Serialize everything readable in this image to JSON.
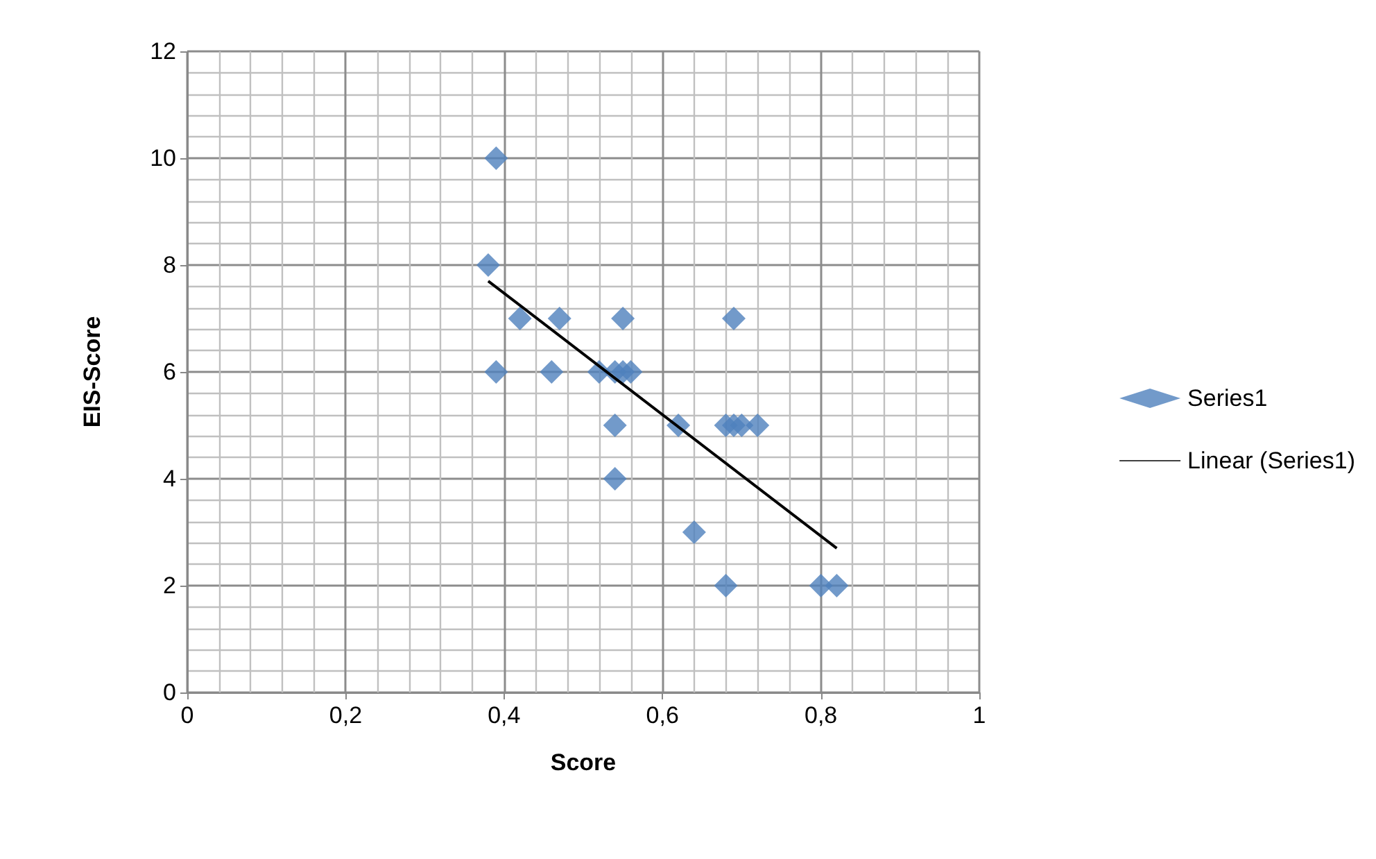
{
  "chart_data": {
    "type": "scatter",
    "xlabel": "Score",
    "ylabel": "EIS-Score",
    "xlim": [
      0,
      1
    ],
    "xticks": [
      0,
      {
        "value": 0.2,
        "label": "0,2"
      },
      {
        "value": 0.4,
        "label": "0,4"
      },
      {
        "value": 0.6,
        "label": "0,6"
      },
      {
        "value": 0.8,
        "label": "0,8"
      },
      1
    ],
    "ylim": [
      0,
      12
    ],
    "yticks": [
      0,
      2,
      4,
      6,
      8,
      10,
      12
    ],
    "grid": true,
    "legend": "right",
    "marker": "diamond",
    "series": [
      {
        "name": "Series1",
        "color": "#4f81bd",
        "x": [
          0.39,
          0.38,
          0.42,
          0.47,
          0.55,
          0.69,
          0.39,
          0.46,
          0.52,
          0.54,
          0.55,
          0.56,
          0.54,
          0.62,
          0.68,
          0.69,
          0.7,
          0.72,
          0.54,
          0.64,
          0.68,
          0.8,
          0.82
        ],
        "values": [
          10,
          8,
          7,
          7,
          7,
          7,
          6,
          6,
          6,
          6,
          6,
          6,
          5,
          5,
          5,
          5,
          5,
          5,
          4,
          3,
          2,
          2,
          2
        ]
      },
      {
        "name": "Linear (Series1)",
        "type": "line",
        "color": "#000000",
        "marker": "none",
        "x": [
          0.38,
          0.82
        ],
        "values": [
          7.7,
          2.7
        ]
      }
    ]
  }
}
